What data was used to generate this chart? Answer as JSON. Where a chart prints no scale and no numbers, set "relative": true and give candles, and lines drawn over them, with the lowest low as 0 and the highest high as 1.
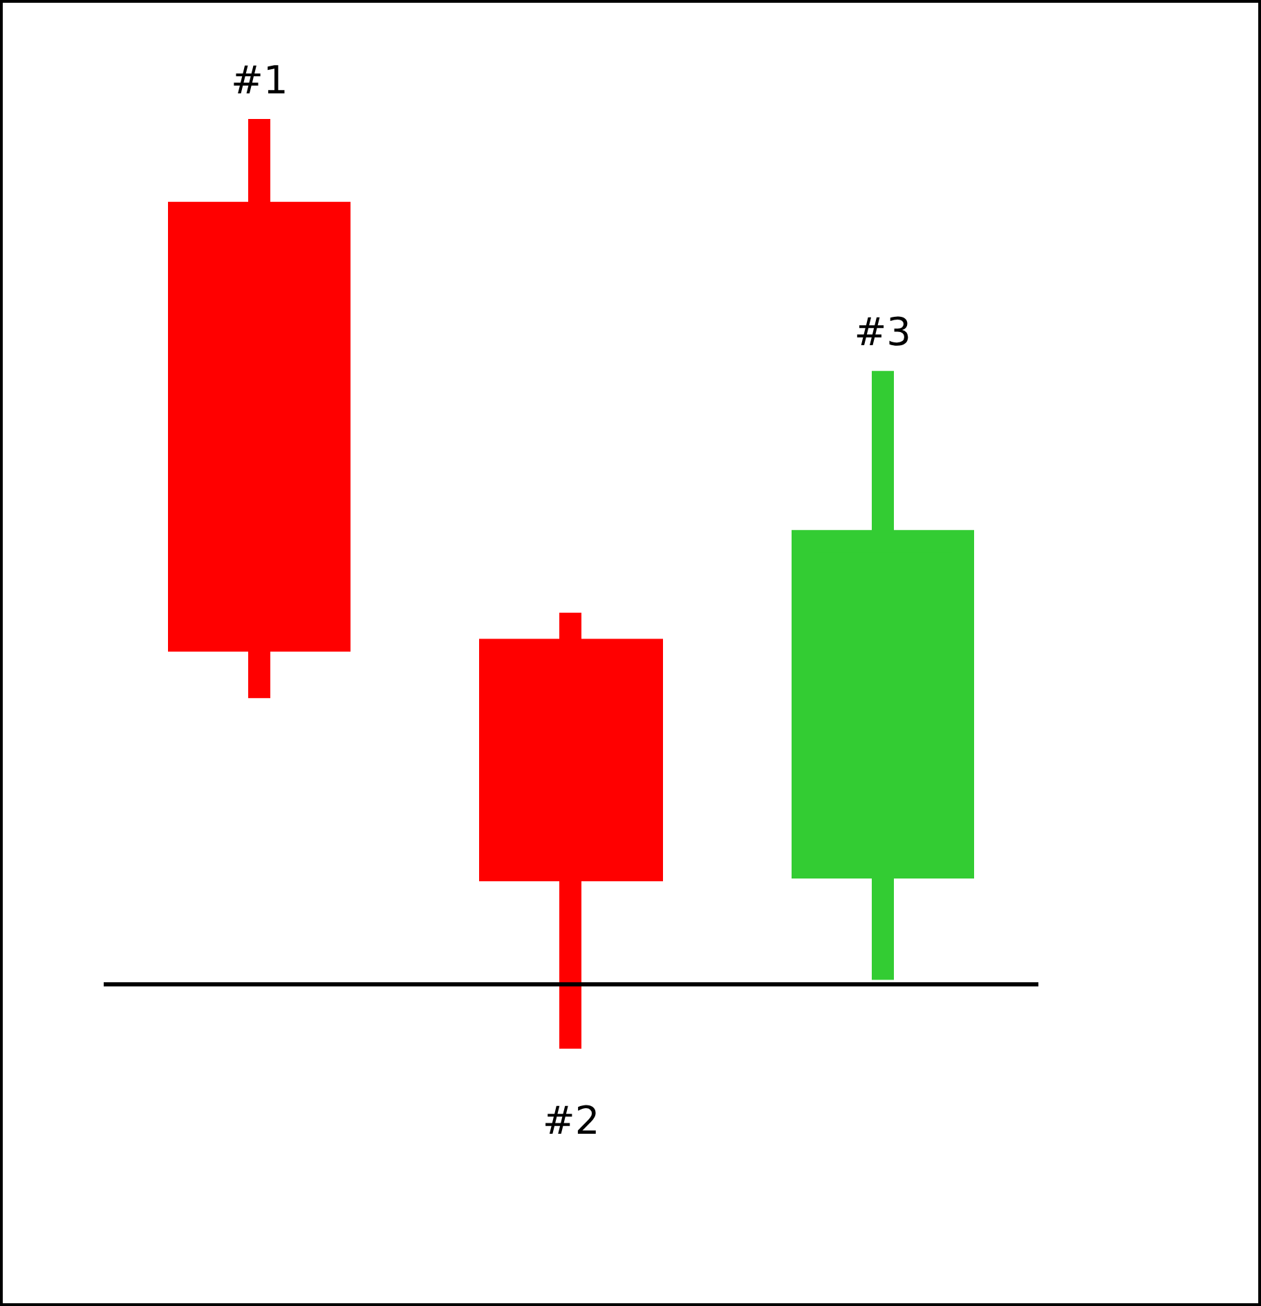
{
  "chart_data": {
    "type": "candlestick",
    "relative": true,
    "categories": [
      null,
      null,
      null
    ],
    "ohlc": [
      [
        0.899,
        1,
        0.377,
        0.439
      ],
      [
        0.429,
        0.469,
        0,
        0.192
      ],
      [
        0.195,
        0.729,
        0.074,
        0.546
      ]
    ],
    "colors": [
      "#ff0000",
      "#ff0000",
      "#33cc33"
    ],
    "annotations": [
      "#1",
      "#2",
      "#3"
    ],
    "ref_lines": [
      {
        "axis": "y",
        "value": 0.071,
        "color": "#000000",
        "line_style": "solid"
      }
    ]
  }
}
